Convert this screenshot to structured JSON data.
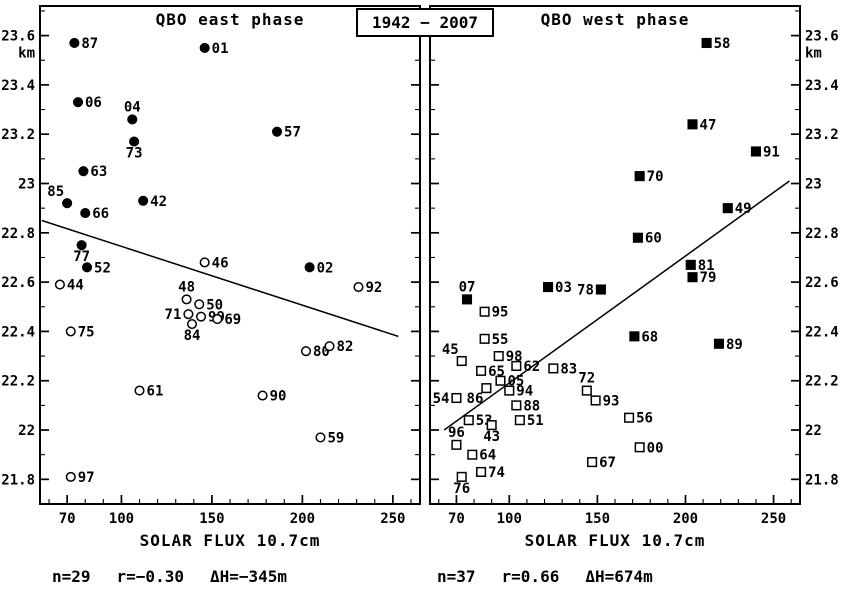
{
  "year_range": "1942 − 2007",
  "colors": {
    "red": "#e60000",
    "cyan": "#00a3e0",
    "black": "#000000"
  },
  "chart_data": [
    {
      "type": "scatter",
      "title": "QBO east phase",
      "marker": "circle",
      "xlabel": "SOLAR FLUX 10.7cm",
      "ylabel": "km",
      "xlim": [
        55,
        265
      ],
      "ylim": [
        21.7,
        23.72
      ],
      "x_ticks": [
        70,
        100,
        150,
        200,
        250
      ],
      "x_minor_step": 10,
      "y_ticks": [
        23.6,
        23.4,
        23.2,
        23.0,
        22.8,
        22.6,
        22.4,
        22.2,
        22.0,
        21.8
      ],
      "y_tick_labels": [
        "23.6",
        "23.4",
        "23.2",
        "23",
        "22.8",
        "22.6",
        "22.4",
        "22.2",
        "22",
        "21.8"
      ],
      "y_minor_step": 0.1,
      "grid": false,
      "stats": {
        "n": "n=29",
        "r": "r=−0.30",
        "dH": "ΔH=−345m"
      },
      "trend": {
        "x1": 56,
        "y1": 22.85,
        "x2": 253,
        "y2": 22.38
      },
      "points": [
        {
          "label": "87",
          "x": 74,
          "y": 23.57,
          "filled": true,
          "color": "red",
          "side": "r"
        },
        {
          "label": "01",
          "x": 146,
          "y": 23.55,
          "filled": true,
          "color": "cyan",
          "side": "r"
        },
        {
          "label": "06",
          "x": 76,
          "y": 23.33,
          "filled": true,
          "color": "cyan",
          "side": "r"
        },
        {
          "label": "04",
          "x": 106,
          "y": 23.26,
          "filled": true,
          "color": "black",
          "side": "t"
        },
        {
          "label": "57",
          "x": 186,
          "y": 23.21,
          "filled": true,
          "color": "black",
          "side": "r"
        },
        {
          "label": "73",
          "x": 107,
          "y": 23.17,
          "filled": true,
          "color": "red",
          "side": "b"
        },
        {
          "label": "63",
          "x": 79,
          "y": 23.05,
          "filled": true,
          "color": "cyan",
          "side": "r"
        },
        {
          "label": "85",
          "x": 70,
          "y": 22.92,
          "filled": true,
          "color": "cyan",
          "side": "tl"
        },
        {
          "label": "42",
          "x": 112,
          "y": 22.93,
          "filled": true,
          "color": "black",
          "side": "r"
        },
        {
          "label": "66",
          "x": 80,
          "y": 22.88,
          "filled": true,
          "color": "red",
          "side": "r"
        },
        {
          "label": "77",
          "x": 78,
          "y": 22.75,
          "filled": true,
          "color": "red",
          "side": "b"
        },
        {
          "label": "52",
          "x": 81,
          "y": 22.66,
          "filled": true,
          "color": "black",
          "side": "r"
        },
        {
          "label": "46",
          "x": 146,
          "y": 22.68,
          "filled": false,
          "color": "black",
          "side": "r"
        },
        {
          "label": "02",
          "x": 204,
          "y": 22.66,
          "filled": true,
          "color": "black",
          "side": "r"
        },
        {
          "label": "44",
          "x": 66,
          "y": 22.59,
          "filled": false,
          "color": "black",
          "side": "r"
        },
        {
          "label": "92",
          "x": 231,
          "y": 22.58,
          "filled": false,
          "color": "red",
          "side": "r"
        },
        {
          "label": "48",
          "x": 136,
          "y": 22.53,
          "filled": false,
          "color": "black",
          "side": "t"
        },
        {
          "label": "50",
          "x": 143,
          "y": 22.51,
          "filled": false,
          "color": "cyan",
          "side": "r"
        },
        {
          "label": "71",
          "x": 137,
          "y": 22.47,
          "filled": false,
          "color": "cyan",
          "side": "l"
        },
        {
          "label": "99",
          "x": 144,
          "y": 22.46,
          "filled": false,
          "color": "cyan",
          "side": "r"
        },
        {
          "label": "84",
          "x": 139,
          "y": 22.43,
          "filled": false,
          "color": "black",
          "side": "b"
        },
        {
          "label": "69",
          "x": 153,
          "y": 22.45,
          "filled": false,
          "color": "black",
          "side": "r"
        },
        {
          "label": "75",
          "x": 72,
          "y": 22.4,
          "filled": false,
          "color": "cyan",
          "side": "r"
        },
        {
          "label": "80",
          "x": 202,
          "y": 22.32,
          "filled": false,
          "color": "red",
          "side": "r"
        },
        {
          "label": "82",
          "x": 215,
          "y": 22.34,
          "filled": false,
          "color": "black",
          "side": "r"
        },
        {
          "label": "61",
          "x": 110,
          "y": 22.16,
          "filled": false,
          "color": "black",
          "side": "r"
        },
        {
          "label": "90",
          "x": 178,
          "y": 22.14,
          "filled": false,
          "color": "black",
          "side": "r"
        },
        {
          "label": "59",
          "x": 210,
          "y": 21.97,
          "filled": false,
          "color": "black",
          "side": "r"
        },
        {
          "label": "97",
          "x": 72,
          "y": 21.81,
          "filled": false,
          "color": "cyan",
          "side": "r"
        }
      ]
    },
    {
      "type": "scatter",
      "title": "QBO west phase",
      "marker": "square",
      "xlabel": "SOLAR FLUX 10.7cm",
      "ylabel": "km",
      "xlim": [
        55,
        265
      ],
      "ylim": [
        21.7,
        23.72
      ],
      "x_ticks": [
        70,
        100,
        150,
        200,
        250
      ],
      "x_minor_step": 10,
      "y_ticks": [
        23.6,
        23.4,
        23.2,
        23.0,
        22.8,
        22.6,
        22.4,
        22.2,
        22.0,
        21.8
      ],
      "y_tick_labels": [
        "23.6",
        "23.4",
        "23.2",
        "23",
        "22.8",
        "22.6",
        "22.4",
        "22.2",
        "22",
        "21.8"
      ],
      "y_minor_step": 0.1,
      "grid": false,
      "stats": {
        "n": "n=37",
        "r": "r=0.66",
        "dH": "ΔH=674m"
      },
      "trend": {
        "x1": 63,
        "y1": 22.0,
        "x2": 259,
        "y2": 23.01
      },
      "points": [
        {
          "label": "58",
          "x": 212,
          "y": 23.57,
          "filled": true,
          "color": "red",
          "side": "r"
        },
        {
          "label": "47",
          "x": 204,
          "y": 23.24,
          "filled": true,
          "color": "black",
          "side": "r"
        },
        {
          "label": "91",
          "x": 240,
          "y": 23.13,
          "filled": true,
          "color": "black",
          "side": "r"
        },
        {
          "label": "70",
          "x": 174,
          "y": 23.03,
          "filled": true,
          "color": "red",
          "side": "r"
        },
        {
          "label": "49",
          "x": 224,
          "y": 22.9,
          "filled": true,
          "color": "black",
          "side": "r"
        },
        {
          "label": "60",
          "x": 173,
          "y": 22.78,
          "filled": true,
          "color": "black",
          "side": "r"
        },
        {
          "label": "81",
          "x": 203,
          "y": 22.67,
          "filled": true,
          "color": "black",
          "side": "r"
        },
        {
          "label": "79",
          "x": 204,
          "y": 22.62,
          "filled": true,
          "color": "black",
          "side": "r"
        },
        {
          "label": "03",
          "x": 122,
          "y": 22.58,
          "filled": true,
          "color": "red",
          "side": "r"
        },
        {
          "label": "78",
          "x": 152,
          "y": 22.57,
          "filled": true,
          "color": "red",
          "side": "l"
        },
        {
          "label": "07",
          "x": 76,
          "y": 22.53,
          "filled": true,
          "color": "red",
          "side": "t"
        },
        {
          "label": "95",
          "x": 86,
          "y": 22.48,
          "filled": false,
          "color": "red",
          "side": "r"
        },
        {
          "label": "68",
          "x": 171,
          "y": 22.38,
          "filled": true,
          "color": "cyan",
          "side": "r"
        },
        {
          "label": "89",
          "x": 219,
          "y": 22.35,
          "filled": true,
          "color": "cyan",
          "side": "r"
        },
        {
          "label": "55",
          "x": 86,
          "y": 22.37,
          "filled": false,
          "color": "cyan",
          "side": "r"
        },
        {
          "label": "98",
          "x": 94,
          "y": 22.3,
          "filled": false,
          "color": "red",
          "side": "r"
        },
        {
          "label": "45",
          "x": 73,
          "y": 22.28,
          "filled": false,
          "color": "black",
          "side": "tl"
        },
        {
          "label": "65",
          "x": 84,
          "y": 22.24,
          "filled": false,
          "color": "cyan",
          "side": "r"
        },
        {
          "label": "62",
          "x": 104,
          "y": 22.26,
          "filled": false,
          "color": "cyan",
          "side": "r"
        },
        {
          "label": "83",
          "x": 125,
          "y": 22.25,
          "filled": false,
          "color": "red",
          "side": "r"
        },
        {
          "label": "54",
          "x": 70,
          "y": 22.13,
          "filled": false,
          "color": "black",
          "side": "l"
        },
        {
          "label": "05",
          "x": 95,
          "y": 22.2,
          "filled": false,
          "color": "red",
          "side": "r"
        },
        {
          "label": "86",
          "x": 87,
          "y": 22.17,
          "filled": false,
          "color": "black",
          "side": "bl"
        },
        {
          "label": "94",
          "x": 100,
          "y": 22.16,
          "filled": false,
          "color": "black",
          "side": "r"
        },
        {
          "label": "72",
          "x": 144,
          "y": 22.16,
          "filled": false,
          "color": "black",
          "side": "t"
        },
        {
          "label": "93",
          "x": 149,
          "y": 22.12,
          "filled": false,
          "color": "red",
          "side": "r"
        },
        {
          "label": "88",
          "x": 104,
          "y": 22.1,
          "filled": false,
          "color": "black",
          "side": "r"
        },
        {
          "label": "53",
          "x": 77,
          "y": 22.04,
          "filled": false,
          "color": "black",
          "side": "r"
        },
        {
          "label": "43",
          "x": 90,
          "y": 22.02,
          "filled": false,
          "color": "black",
          "side": "b"
        },
        {
          "label": "51",
          "x": 106,
          "y": 22.04,
          "filled": false,
          "color": "cyan",
          "side": "r"
        },
        {
          "label": "56",
          "x": 168,
          "y": 22.05,
          "filled": false,
          "color": "cyan",
          "side": "r"
        },
        {
          "label": "96",
          "x": 70,
          "y": 21.94,
          "filled": false,
          "color": "cyan",
          "side": "t"
        },
        {
          "label": "64",
          "x": 79,
          "y": 21.9,
          "filled": false,
          "color": "red",
          "side": "r"
        },
        {
          "label": "00",
          "x": 174,
          "y": 21.93,
          "filled": false,
          "color": "cyan",
          "side": "r"
        },
        {
          "label": "67",
          "x": 147,
          "y": 21.87,
          "filled": false,
          "color": "cyan",
          "side": "r"
        },
        {
          "label": "74",
          "x": 84,
          "y": 21.83,
          "filled": false,
          "color": "cyan",
          "side": "r"
        },
        {
          "label": "76",
          "x": 73,
          "y": 21.81,
          "filled": false,
          "color": "cyan",
          "side": "b"
        }
      ]
    }
  ]
}
